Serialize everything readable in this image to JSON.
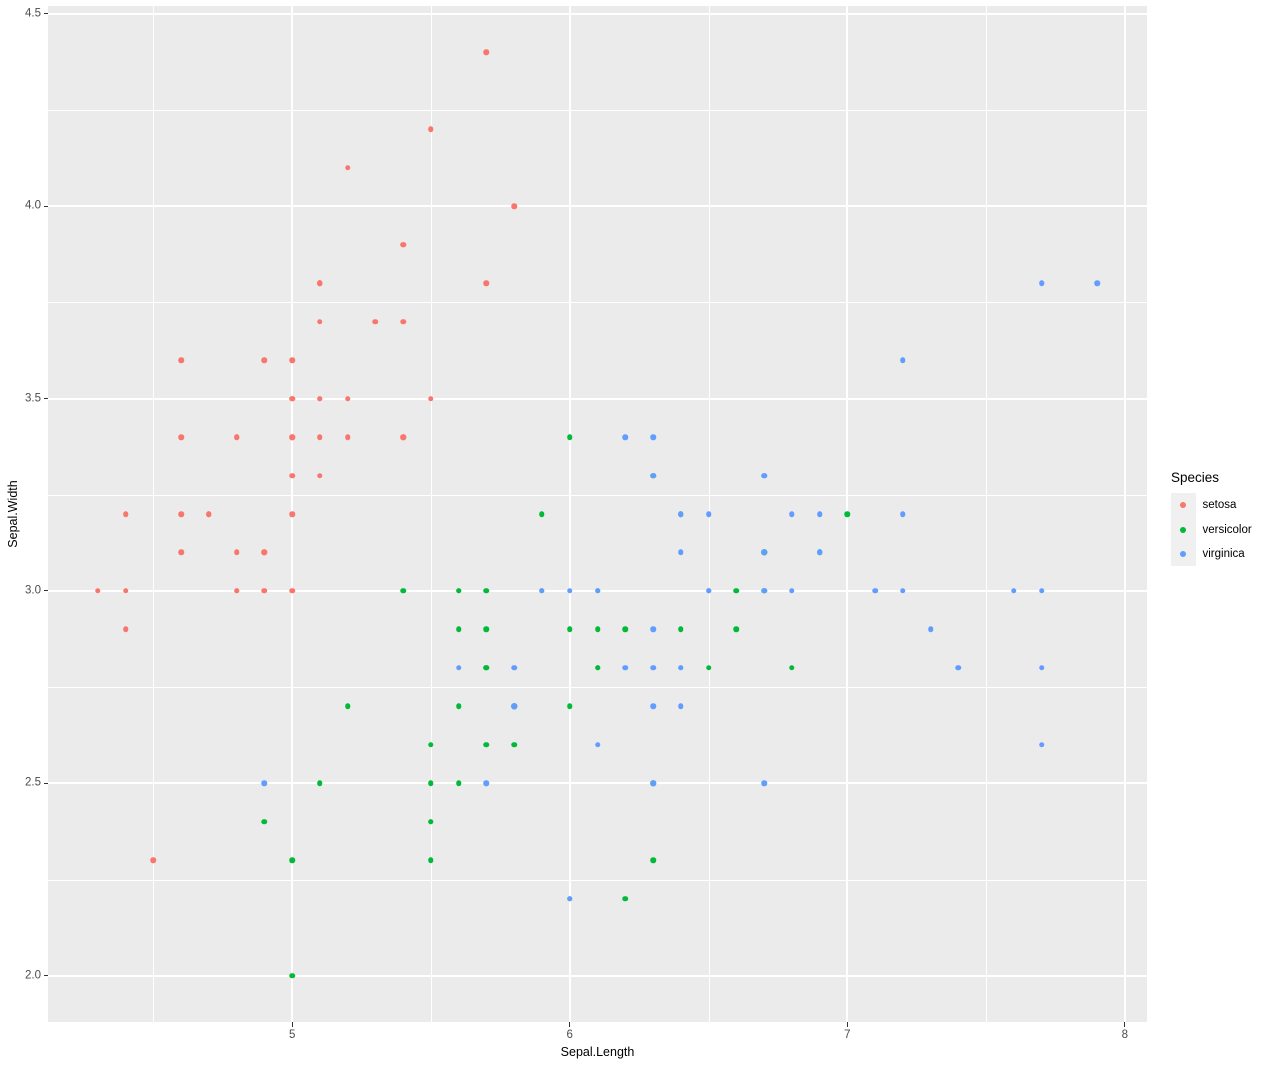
{
  "chart_data": {
    "type": "scatter",
    "title": "",
    "xlabel": "Sepal.Length",
    "ylabel": "Sepal.Width",
    "xlim": [
      4.12,
      8.08
    ],
    "ylim": [
      1.88,
      4.52
    ],
    "x_ticks": [
      5,
      6,
      7,
      8
    ],
    "x_tick_labels": [
      "5",
      "6",
      "7",
      "8"
    ],
    "y_ticks": [
      2.0,
      2.5,
      3.0,
      3.5,
      4.0,
      4.5
    ],
    "y_tick_labels": [
      "2.0",
      "2.5",
      "3.0",
      "3.5",
      "4.0",
      "4.5"
    ],
    "x_minor_ticks": [
      4.5,
      5.5,
      6.5,
      7.5
    ],
    "y_minor_ticks": [
      2.25,
      2.75,
      3.25,
      3.75,
      4.25
    ],
    "grid": true,
    "panel_background": "#EBEBEB",
    "gridline_color": "#FFFFFF",
    "legend": {
      "title": "Species",
      "position": "right",
      "key_background": "#F0F0F0",
      "entries": [
        {
          "label": "setosa",
          "color": "#F8766D"
        },
        {
          "label": "versicolor",
          "color": "#00BA38"
        },
        {
          "label": "virginica",
          "color": "#619CFF"
        }
      ]
    },
    "series": [
      {
        "name": "setosa",
        "color": "#F8766D",
        "points": [
          [
            5.1,
            3.5
          ],
          [
            4.9,
            3.0
          ],
          [
            4.7,
            3.2
          ],
          [
            4.6,
            3.1
          ],
          [
            5.0,
            3.6
          ],
          [
            5.4,
            3.9
          ],
          [
            4.6,
            3.4
          ],
          [
            5.0,
            3.4
          ],
          [
            4.4,
            2.9
          ],
          [
            4.9,
            3.1
          ],
          [
            5.4,
            3.7
          ],
          [
            4.8,
            3.4
          ],
          [
            4.8,
            3.0
          ],
          [
            4.3,
            3.0
          ],
          [
            5.8,
            4.0
          ],
          [
            5.7,
            4.4
          ],
          [
            5.4,
            3.9
          ],
          [
            5.1,
            3.5
          ],
          [
            5.7,
            3.8
          ],
          [
            5.1,
            3.8
          ],
          [
            5.4,
            3.4
          ],
          [
            5.1,
            3.7
          ],
          [
            4.6,
            3.6
          ],
          [
            5.1,
            3.3
          ],
          [
            4.8,
            3.4
          ],
          [
            5.0,
            3.0
          ],
          [
            5.0,
            3.4
          ],
          [
            5.2,
            3.5
          ],
          [
            5.2,
            3.4
          ],
          [
            4.7,
            3.2
          ],
          [
            4.8,
            3.1
          ],
          [
            5.4,
            3.4
          ],
          [
            5.2,
            4.1
          ],
          [
            5.5,
            4.2
          ],
          [
            4.9,
            3.1
          ],
          [
            5.0,
            3.2
          ],
          [
            5.5,
            3.5
          ],
          [
            4.9,
            3.6
          ],
          [
            4.4,
            3.0
          ],
          [
            5.1,
            3.4
          ],
          [
            5.0,
            3.5
          ],
          [
            4.5,
            2.3
          ],
          [
            4.4,
            3.2
          ],
          [
            5.0,
            3.5
          ],
          [
            5.1,
            3.8
          ],
          [
            4.8,
            3.0
          ],
          [
            5.1,
            3.8
          ],
          [
            4.6,
            3.2
          ],
          [
            5.3,
            3.7
          ],
          [
            5.0,
            3.3
          ]
        ]
      },
      {
        "name": "versicolor",
        "color": "#00BA38",
        "points": [
          [
            7.0,
            3.2
          ],
          [
            6.4,
            3.2
          ],
          [
            6.9,
            3.1
          ],
          [
            5.5,
            2.3
          ],
          [
            6.5,
            2.8
          ],
          [
            5.7,
            2.8
          ],
          [
            6.3,
            3.3
          ],
          [
            4.9,
            2.4
          ],
          [
            6.6,
            2.9
          ],
          [
            5.2,
            2.7
          ],
          [
            5.0,
            2.0
          ],
          [
            5.9,
            3.0
          ],
          [
            6.0,
            2.2
          ],
          [
            6.1,
            2.9
          ],
          [
            5.6,
            2.9
          ],
          [
            6.7,
            3.1
          ],
          [
            5.6,
            3.0
          ],
          [
            5.8,
            2.7
          ],
          [
            6.2,
            2.2
          ],
          [
            5.6,
            2.5
          ],
          [
            5.9,
            3.2
          ],
          [
            6.1,
            2.8
          ],
          [
            6.3,
            2.5
          ],
          [
            6.1,
            2.8
          ],
          [
            6.4,
            2.9
          ],
          [
            6.6,
            3.0
          ],
          [
            6.8,
            2.8
          ],
          [
            6.7,
            3.0
          ],
          [
            6.0,
            2.9
          ],
          [
            5.7,
            2.6
          ],
          [
            5.5,
            2.4
          ],
          [
            5.5,
            2.4
          ],
          [
            5.8,
            2.7
          ],
          [
            6.0,
            2.7
          ],
          [
            5.4,
            3.0
          ],
          [
            6.0,
            3.4
          ],
          [
            6.7,
            3.1
          ],
          [
            6.3,
            2.3
          ],
          [
            5.6,
            3.0
          ],
          [
            5.5,
            2.5
          ],
          [
            5.5,
            2.6
          ],
          [
            6.1,
            3.0
          ],
          [
            5.8,
            2.6
          ],
          [
            5.0,
            2.3
          ],
          [
            5.6,
            2.7
          ],
          [
            5.7,
            3.0
          ],
          [
            5.7,
            2.9
          ],
          [
            6.2,
            2.9
          ],
          [
            5.1,
            2.5
          ],
          [
            5.7,
            2.8
          ]
        ]
      },
      {
        "name": "virginica",
        "color": "#619CFF",
        "points": [
          [
            6.3,
            3.3
          ],
          [
            5.8,
            2.7
          ],
          [
            7.1,
            3.0
          ],
          [
            6.3,
            2.9
          ],
          [
            6.5,
            3.0
          ],
          [
            7.6,
            3.0
          ],
          [
            4.9,
            2.5
          ],
          [
            7.3,
            2.9
          ],
          [
            6.7,
            2.5
          ],
          [
            7.2,
            3.6
          ],
          [
            6.5,
            3.2
          ],
          [
            6.4,
            2.7
          ],
          [
            6.8,
            3.0
          ],
          [
            5.7,
            2.5
          ],
          [
            5.8,
            2.8
          ],
          [
            6.4,
            3.2
          ],
          [
            6.5,
            3.0
          ],
          [
            7.7,
            3.8
          ],
          [
            7.7,
            2.6
          ],
          [
            6.0,
            2.2
          ],
          [
            6.9,
            3.2
          ],
          [
            5.6,
            2.8
          ],
          [
            7.7,
            2.8
          ],
          [
            6.3,
            2.7
          ],
          [
            6.7,
            3.3
          ],
          [
            7.2,
            3.2
          ],
          [
            6.2,
            2.8
          ],
          [
            6.1,
            3.0
          ],
          [
            6.4,
            2.8
          ],
          [
            7.2,
            3.0
          ],
          [
            7.4,
            2.8
          ],
          [
            7.9,
            3.8
          ],
          [
            6.4,
            2.8
          ],
          [
            6.3,
            2.8
          ],
          [
            6.1,
            2.6
          ],
          [
            7.7,
            3.0
          ],
          [
            6.3,
            3.4
          ],
          [
            6.4,
            3.1
          ],
          [
            6.0,
            3.0
          ],
          [
            6.9,
            3.1
          ],
          [
            6.7,
            3.1
          ],
          [
            6.9,
            3.1
          ],
          [
            5.8,
            2.7
          ],
          [
            6.8,
            3.2
          ],
          [
            6.7,
            3.3
          ],
          [
            6.7,
            3.0
          ],
          [
            6.3,
            2.5
          ],
          [
            6.5,
            3.0
          ],
          [
            6.2,
            3.4
          ],
          [
            5.9,
            3.0
          ]
        ]
      }
    ]
  }
}
